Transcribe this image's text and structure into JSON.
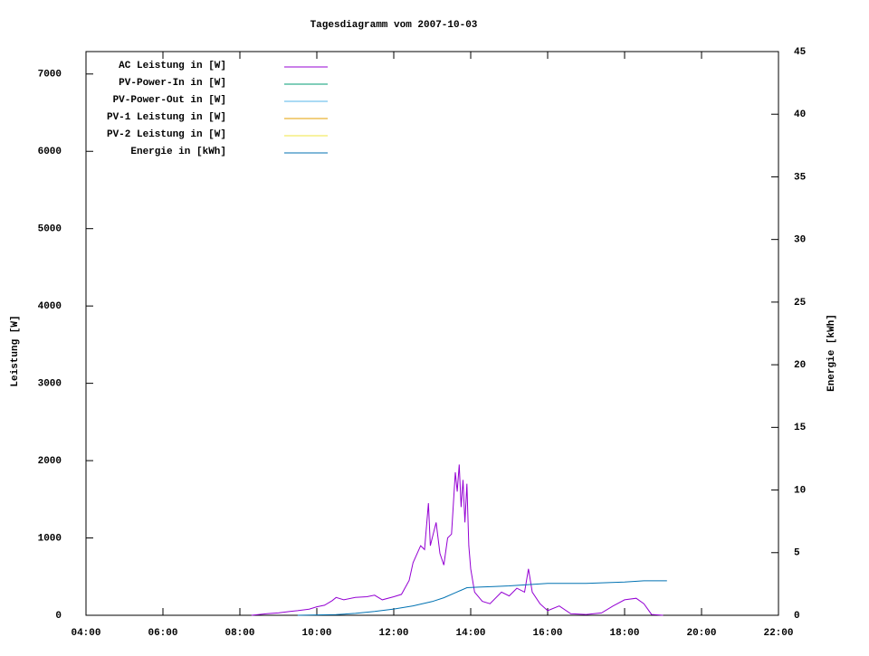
{
  "chart_data": {
    "type": "line",
    "title": "Tagesdiagramm vom 2007-10-03",
    "ylabel": "Leistung [W]",
    "y2label": "Energie [kWh]",
    "xlim": [
      4,
      22
    ],
    "xticks": [
      {
        "value": 4,
        "label": "04:00"
      },
      {
        "value": 6,
        "label": "06:00"
      },
      {
        "value": 8,
        "label": "08:00"
      },
      {
        "value": 10,
        "label": "10:00"
      },
      {
        "value": 12,
        "label": "12:00"
      },
      {
        "value": 14,
        "label": "14:00"
      },
      {
        "value": 16,
        "label": "16:00"
      },
      {
        "value": 18,
        "label": "18:00"
      },
      {
        "value": 20,
        "label": "20:00"
      },
      {
        "value": 22,
        "label": "22:00"
      }
    ],
    "ylim": [
      0,
      7290
    ],
    "yticks": [
      0,
      1000,
      2000,
      3000,
      4000,
      5000,
      6000,
      7000
    ],
    "y2lim": [
      0,
      45
    ],
    "y2ticks": [
      0,
      5,
      10,
      15,
      20,
      25,
      30,
      35,
      40,
      45
    ],
    "series": [
      {
        "name": "AC Leistung in [W]",
        "color": "#9400d3",
        "x": [
          8.3,
          8.7,
          9.0,
          9.3,
          9.5,
          9.8,
          10.0,
          10.2,
          10.4,
          10.5,
          10.7,
          11.0,
          11.3,
          11.5,
          11.7,
          12.0,
          12.2,
          12.4,
          12.5,
          12.7,
          12.8,
          12.9,
          12.95,
          13.0,
          13.1,
          13.2,
          13.3,
          13.4,
          13.5,
          13.6,
          13.65,
          13.7,
          13.75,
          13.8,
          13.85,
          13.9,
          13.95,
          14.0,
          14.1,
          14.3,
          14.5,
          14.8,
          15.0,
          15.2,
          15.4,
          15.5,
          15.6,
          15.8,
          16.0,
          16.3,
          16.6,
          17.0,
          17.4,
          17.7,
          18.0,
          18.3,
          18.5,
          18.7,
          19.0
        ],
        "values": [
          0,
          20,
          30,
          50,
          60,
          80,
          110,
          130,
          190,
          230,
          200,
          230,
          240,
          260,
          200,
          240,
          270,
          450,
          680,
          900,
          850,
          1450,
          900,
          1000,
          1200,
          800,
          650,
          1000,
          1050,
          1850,
          1600,
          1950,
          1400,
          1750,
          1200,
          1700,
          900,
          600,
          300,
          180,
          150,
          300,
          250,
          350,
          300,
          600,
          300,
          150,
          60,
          120,
          20,
          10,
          30,
          120,
          200,
          220,
          150,
          10,
          0
        ]
      },
      {
        "name": "PV-Power-In in [W]",
        "color": "#009e73",
        "x": [],
        "values": []
      },
      {
        "name": "PV-Power-Out in [W]",
        "color": "#56b4e9",
        "x": [],
        "values": []
      },
      {
        "name": "PV-1 Leistung in [W]",
        "color": "#e69f00",
        "x": [],
        "values": []
      },
      {
        "name": "PV-2 Leistung in [W]",
        "color": "#f0e442",
        "x": [],
        "values": []
      },
      {
        "name": "Energie in [kWh]",
        "color": "#0072b2",
        "axis": "y2",
        "x": [
          9.5,
          10.5,
          11.0,
          11.5,
          12.0,
          12.5,
          13.0,
          13.3,
          13.6,
          13.9,
          14.2,
          14.6,
          15.0,
          15.5,
          16.0,
          17.0,
          18.0,
          18.5,
          19.1
        ],
        "values": [
          0,
          0.05,
          0.15,
          0.3,
          0.5,
          0.75,
          1.1,
          1.4,
          1.8,
          2.2,
          2.25,
          2.3,
          2.35,
          2.45,
          2.55,
          2.55,
          2.65,
          2.75,
          2.75
        ]
      }
    ]
  }
}
